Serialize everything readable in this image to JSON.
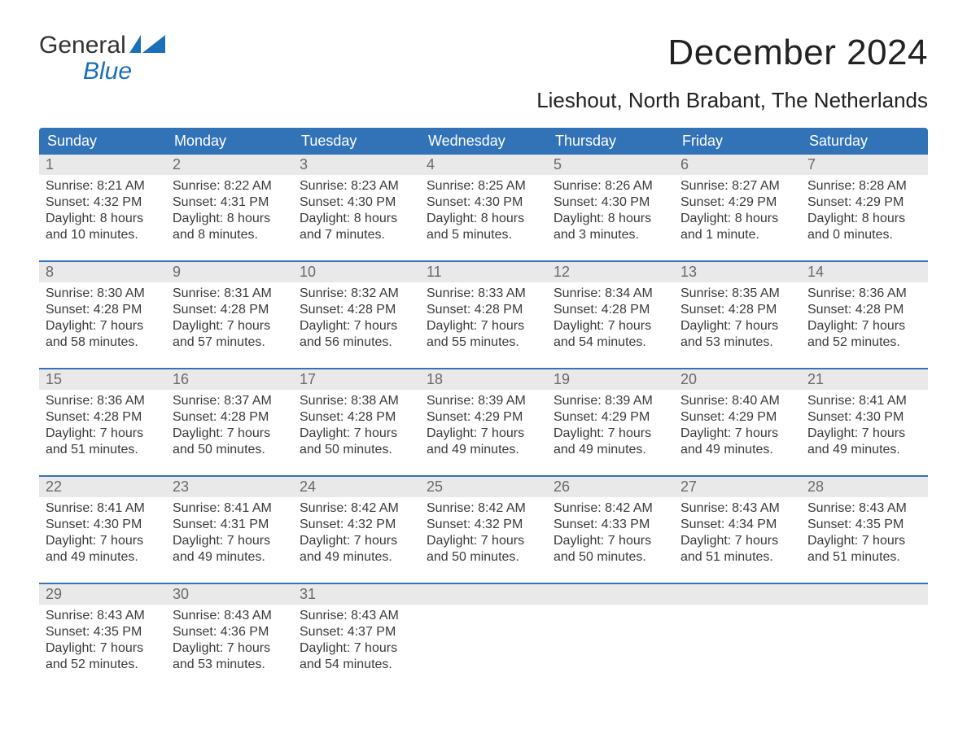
{
  "logo": {
    "word1": "General",
    "word2": "Blue"
  },
  "header": {
    "month_title": "December 2024",
    "location": "Lieshout, North Brabant, The Netherlands"
  },
  "colors": {
    "header_bar": "#3273b8",
    "header_text": "#ffffff",
    "daynum_bg": "#e9e9e9",
    "daynum_text": "#6a6a6a",
    "body_text": "#3a3a3a",
    "logo_blue": "#1a6fb8",
    "week_divider": "#3273b8",
    "page_bg": "#ffffff"
  },
  "weekdays": [
    "Sunday",
    "Monday",
    "Tuesday",
    "Wednesday",
    "Thursday",
    "Friday",
    "Saturday"
  ],
  "weeks": [
    [
      {
        "n": "1",
        "sr": "Sunrise: 8:21 AM",
        "ss": "Sunset: 4:32 PM",
        "d1": "Daylight: 8 hours",
        "d2": "and 10 minutes."
      },
      {
        "n": "2",
        "sr": "Sunrise: 8:22 AM",
        "ss": "Sunset: 4:31 PM",
        "d1": "Daylight: 8 hours",
        "d2": "and 8 minutes."
      },
      {
        "n": "3",
        "sr": "Sunrise: 8:23 AM",
        "ss": "Sunset: 4:30 PM",
        "d1": "Daylight: 8 hours",
        "d2": "and 7 minutes."
      },
      {
        "n": "4",
        "sr": "Sunrise: 8:25 AM",
        "ss": "Sunset: 4:30 PM",
        "d1": "Daylight: 8 hours",
        "d2": "and 5 minutes."
      },
      {
        "n": "5",
        "sr": "Sunrise: 8:26 AM",
        "ss": "Sunset: 4:30 PM",
        "d1": "Daylight: 8 hours",
        "d2": "and 3 minutes."
      },
      {
        "n": "6",
        "sr": "Sunrise: 8:27 AM",
        "ss": "Sunset: 4:29 PM",
        "d1": "Daylight: 8 hours",
        "d2": "and 1 minute."
      },
      {
        "n": "7",
        "sr": "Sunrise: 8:28 AM",
        "ss": "Sunset: 4:29 PM",
        "d1": "Daylight: 8 hours",
        "d2": "and 0 minutes."
      }
    ],
    [
      {
        "n": "8",
        "sr": "Sunrise: 8:30 AM",
        "ss": "Sunset: 4:28 PM",
        "d1": "Daylight: 7 hours",
        "d2": "and 58 minutes."
      },
      {
        "n": "9",
        "sr": "Sunrise: 8:31 AM",
        "ss": "Sunset: 4:28 PM",
        "d1": "Daylight: 7 hours",
        "d2": "and 57 minutes."
      },
      {
        "n": "10",
        "sr": "Sunrise: 8:32 AM",
        "ss": "Sunset: 4:28 PM",
        "d1": "Daylight: 7 hours",
        "d2": "and 56 minutes."
      },
      {
        "n": "11",
        "sr": "Sunrise: 8:33 AM",
        "ss": "Sunset: 4:28 PM",
        "d1": "Daylight: 7 hours",
        "d2": "and 55 minutes."
      },
      {
        "n": "12",
        "sr": "Sunrise: 8:34 AM",
        "ss": "Sunset: 4:28 PM",
        "d1": "Daylight: 7 hours",
        "d2": "and 54 minutes."
      },
      {
        "n": "13",
        "sr": "Sunrise: 8:35 AM",
        "ss": "Sunset: 4:28 PM",
        "d1": "Daylight: 7 hours",
        "d2": "and 53 minutes."
      },
      {
        "n": "14",
        "sr": "Sunrise: 8:36 AM",
        "ss": "Sunset: 4:28 PM",
        "d1": "Daylight: 7 hours",
        "d2": "and 52 minutes."
      }
    ],
    [
      {
        "n": "15",
        "sr": "Sunrise: 8:36 AM",
        "ss": "Sunset: 4:28 PM",
        "d1": "Daylight: 7 hours",
        "d2": "and 51 minutes."
      },
      {
        "n": "16",
        "sr": "Sunrise: 8:37 AM",
        "ss": "Sunset: 4:28 PM",
        "d1": "Daylight: 7 hours",
        "d2": "and 50 minutes."
      },
      {
        "n": "17",
        "sr": "Sunrise: 8:38 AM",
        "ss": "Sunset: 4:28 PM",
        "d1": "Daylight: 7 hours",
        "d2": "and 50 minutes."
      },
      {
        "n": "18",
        "sr": "Sunrise: 8:39 AM",
        "ss": "Sunset: 4:29 PM",
        "d1": "Daylight: 7 hours",
        "d2": "and 49 minutes."
      },
      {
        "n": "19",
        "sr": "Sunrise: 8:39 AM",
        "ss": "Sunset: 4:29 PM",
        "d1": "Daylight: 7 hours",
        "d2": "and 49 minutes."
      },
      {
        "n": "20",
        "sr": "Sunrise: 8:40 AM",
        "ss": "Sunset: 4:29 PM",
        "d1": "Daylight: 7 hours",
        "d2": "and 49 minutes."
      },
      {
        "n": "21",
        "sr": "Sunrise: 8:41 AM",
        "ss": "Sunset: 4:30 PM",
        "d1": "Daylight: 7 hours",
        "d2": "and 49 minutes."
      }
    ],
    [
      {
        "n": "22",
        "sr": "Sunrise: 8:41 AM",
        "ss": "Sunset: 4:30 PM",
        "d1": "Daylight: 7 hours",
        "d2": "and 49 minutes."
      },
      {
        "n": "23",
        "sr": "Sunrise: 8:41 AM",
        "ss": "Sunset: 4:31 PM",
        "d1": "Daylight: 7 hours",
        "d2": "and 49 minutes."
      },
      {
        "n": "24",
        "sr": "Sunrise: 8:42 AM",
        "ss": "Sunset: 4:32 PM",
        "d1": "Daylight: 7 hours",
        "d2": "and 49 minutes."
      },
      {
        "n": "25",
        "sr": "Sunrise: 8:42 AM",
        "ss": "Sunset: 4:32 PM",
        "d1": "Daylight: 7 hours",
        "d2": "and 50 minutes."
      },
      {
        "n": "26",
        "sr": "Sunrise: 8:42 AM",
        "ss": "Sunset: 4:33 PM",
        "d1": "Daylight: 7 hours",
        "d2": "and 50 minutes."
      },
      {
        "n": "27",
        "sr": "Sunrise: 8:43 AM",
        "ss": "Sunset: 4:34 PM",
        "d1": "Daylight: 7 hours",
        "d2": "and 51 minutes."
      },
      {
        "n": "28",
        "sr": "Sunrise: 8:43 AM",
        "ss": "Sunset: 4:35 PM",
        "d1": "Daylight: 7 hours",
        "d2": "and 51 minutes."
      }
    ],
    [
      {
        "n": "29",
        "sr": "Sunrise: 8:43 AM",
        "ss": "Sunset: 4:35 PM",
        "d1": "Daylight: 7 hours",
        "d2": "and 52 minutes."
      },
      {
        "n": "30",
        "sr": "Sunrise: 8:43 AM",
        "ss": "Sunset: 4:36 PM",
        "d1": "Daylight: 7 hours",
        "d2": "and 53 minutes."
      },
      {
        "n": "31",
        "sr": "Sunrise: 8:43 AM",
        "ss": "Sunset: 4:37 PM",
        "d1": "Daylight: 7 hours",
        "d2": "and 54 minutes."
      },
      null,
      null,
      null,
      null
    ]
  ]
}
